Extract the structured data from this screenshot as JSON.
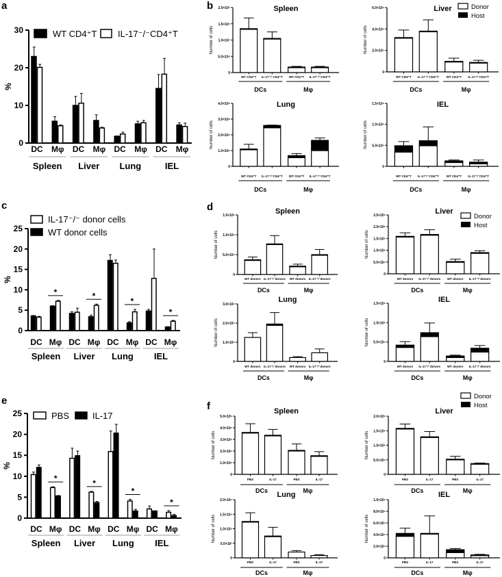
{
  "panel_letters": [
    "a",
    "b",
    "c",
    "d",
    "e",
    "f"
  ],
  "small_legends": {
    "b": [
      "Donor",
      "Host"
    ],
    "d": [
      "Donor",
      "Host"
    ],
    "f": [
      "Donor",
      "Host"
    ]
  },
  "chart_data": [
    {
      "id": "a",
      "type": "bar",
      "ylabel": "%",
      "ylim": [
        0,
        30
      ],
      "yticks": [
        0,
        10,
        20,
        30
      ],
      "organs": [
        "Spleen",
        "Liver",
        "Lung",
        "IEL"
      ],
      "cell_types": [
        "DC",
        "Mφ"
      ],
      "series": [
        {
          "name": "WT CD4⁺T",
          "color": "#000000",
          "values": [
            23.0,
            5.8,
            10.0,
            6.0,
            1.8,
            5.1,
            14.5,
            4.8
          ],
          "errors": [
            2.5,
            1.2,
            2.4,
            1.5,
            0.1,
            0.7,
            3.7,
            0.6
          ]
        },
        {
          "name": "IL-17⁻/⁻CD4⁺T",
          "color": "#ffffff",
          "values": [
            20.1,
            4.6,
            10.6,
            4.0,
            2.4,
            5.4,
            18.3,
            4.4
          ],
          "errors": [
            0.8,
            0.2,
            2.6,
            0.2,
            0.5,
            0.6,
            4.2,
            0.9
          ]
        }
      ],
      "significant_groups": [],
      "significance_label": "*",
      "legend": "top"
    },
    {
      "id": "b-spleen",
      "panel": "b",
      "type": "bar",
      "stacked": true,
      "title": "Spleen",
      "ylabel": "Number of cells",
      "ylim": [
        0,
        20000000.0
      ],
      "yticks": [
        0,
        5000000.0,
        10000000.0,
        15000000.0,
        20000000.0
      ],
      "ytick_labels": [
        "0",
        "5.0×10⁶",
        "1.0×10⁷",
        "1.5×10⁷",
        "2.0×10⁷"
      ],
      "categories": [
        "WT CD4⁺T",
        "IL-17⁻/⁻CD4⁺T",
        "WT CD4⁺T",
        "IL-17⁻/⁻CD4⁺T"
      ],
      "groups": [
        "DCs",
        "Mφ"
      ],
      "series": [
        {
          "name": "Donor",
          "values": [
            13400000.0,
            10400000.0,
            1600000.0,
            1600000.0
          ]
        },
        {
          "name": "Host",
          "values": [
            100000.0,
            100000.0,
            100000.0,
            100000.0
          ]
        }
      ],
      "errors": [
        3300000.0,
        2000000.0,
        200000.0,
        200000.0
      ]
    },
    {
      "id": "b-liver",
      "panel": "b",
      "type": "bar",
      "stacked": true,
      "title": "Liver",
      "ylabel": "Number of cells",
      "ylim": [
        0,
        6000000.0
      ],
      "yticks": [
        0,
        2000000.0,
        4000000.0,
        6000000.0
      ],
      "ytick_labels": [
        "0",
        "2.0×10⁶",
        "4.0×10⁶",
        "6.0×10⁶"
      ],
      "categories": [
        "WT CD4⁺T",
        "IL-17⁻/⁻CD4⁺T",
        "WT CD4⁺T",
        "IL-17⁻/⁻CD4⁺T"
      ],
      "groups": [
        "DCs",
        "Mφ"
      ],
      "series": [
        {
          "name": "Donor",
          "values": [
            3150000.0,
            3750000.0,
            950000.0,
            830000.0
          ]
        },
        {
          "name": "Host",
          "values": [
            50000.0,
            50000.0,
            30000.0,
            50000.0
          ]
        }
      ],
      "errors": [
        700000.0,
        1050000.0,
        300000.0,
        200000.0
      ]
    },
    {
      "id": "b-lung",
      "panel": "b",
      "type": "bar",
      "stacked": true,
      "title": "Lung",
      "ylabel": "Number of cells",
      "ylim": [
        0,
        4000000.0
      ],
      "yticks": [
        0,
        1000000.0,
        2000000.0,
        3000000.0,
        4000000.0
      ],
      "ytick_labels": [
        "0",
        "1.0×10⁶",
        "2.0×10⁶",
        "3.0×10⁶",
        "4.0×10⁶"
      ],
      "categories": [
        "WT CD4⁺T",
        "IL-17⁻/⁻CD4⁺T",
        "WT CD4⁺T",
        "IL-17⁻/⁻CD4⁺T"
      ],
      "groups": [
        "DCs",
        "Mφ"
      ],
      "series": [
        {
          "name": "Donor",
          "values": [
            1050000.0,
            2450000.0,
            550000.0,
            1000000.0
          ]
        },
        {
          "name": "Host",
          "values": [
            50000.0,
            150000.0,
            130000.0,
            650000.0
          ]
        }
      ],
      "errors": [
        300000.0,
        20000.0,
        130000.0,
        150000.0
      ]
    },
    {
      "id": "b-iel",
      "panel": "b",
      "type": "bar",
      "stacked": true,
      "title": "IEL",
      "ylabel": "Number of cells",
      "ylim": [
        0,
        1500000.0
      ],
      "yticks": [
        0,
        500000.0,
        1000000.0,
        1500000.0
      ],
      "ytick_labels": [
        "0",
        "5.0×10⁵",
        "1.0×10⁶",
        "1.5×10⁶"
      ],
      "categories": [
        "WT CD4⁺T",
        "IL-17⁻/⁻CD4⁺T",
        "WT CD4⁺T",
        "IL-17⁻/⁻CD4⁺T"
      ],
      "groups": [
        "DCs",
        "Mφ"
      ],
      "series": [
        {
          "name": "Donor",
          "values": [
            340000.0,
            490000.0,
            90000.0,
            60000.0
          ]
        },
        {
          "name": "Host",
          "values": [
            150000.0,
            120000.0,
            40000.0,
            40000.0
          ]
        }
      ],
      "errors": [
        100000.0,
        330000.0,
        20000.0,
        50000.0
      ]
    },
    {
      "id": "c",
      "type": "bar",
      "ylabel": "%",
      "ylim": [
        0,
        25
      ],
      "yticks": [
        0,
        5,
        10,
        15,
        20,
        25
      ],
      "organs": [
        "Spleen",
        "Liver",
        "Lung",
        "IEL"
      ],
      "cell_types": [
        "DC",
        "Mφ"
      ],
      "series": [
        {
          "name": "WT donor cells",
          "color": "#000000",
          "values": [
            3.6,
            6.0,
            4.2,
            3.4,
            17.2,
            1.9,
            4.8,
            0.9
          ],
          "errors": [
            0.1,
            0.1,
            0.4,
            0.4,
            1.4,
            0.3,
            0.4,
            0.05
          ]
        },
        {
          "name": "IL-17⁻/⁻ donor cells",
          "color": "#ffffff",
          "values": [
            3.3,
            7.2,
            4.5,
            6.2,
            16.5,
            4.6,
            12.8,
            2.3
          ],
          "errors": [
            0.2,
            0.2,
            1.0,
            0.3,
            0.8,
            0.6,
            7.2,
            0.2
          ]
        }
      ],
      "legend_order": [
        1,
        0
      ],
      "significant_groups": [
        1,
        3,
        5,
        7
      ],
      "significance_label": "*",
      "legend": "top-left"
    },
    {
      "id": "d-spleen",
      "panel": "d",
      "type": "bar",
      "stacked": true,
      "title": "Spleen",
      "ylabel": "Number of cells",
      "ylim": [
        0,
        150000.0
      ],
      "yticks": [
        0,
        50000.0,
        100000.0,
        150000.0
      ],
      "ytick_labels": [
        "0",
        "5.0×10⁴",
        "1.0×10⁵",
        "1.5×10⁵"
      ],
      "categories": [
        "WT donors",
        "IL-17⁻/⁻donors",
        "WT donors",
        "IL-17⁻/⁻donors"
      ],
      "groups": [
        "DCs",
        "Mφ"
      ],
      "series": [
        {
          "name": "Donor",
          "values": [
            36000.0,
            76000.0,
            20000.0,
            49000.0
          ]
        },
        {
          "name": "Host",
          "values": [
            1000.0,
            1000.0,
            1000.0,
            1000.0
          ]
        }
      ],
      "errors": [
        7000.0,
        21000.0,
        5000.0,
        13000.0
      ]
    },
    {
      "id": "d-liver",
      "panel": "d",
      "type": "bar",
      "stacked": true,
      "title": "Liver",
      "ylabel": "Number of cells",
      "ylim": [
        0,
        250000.0
      ],
      "yticks": [
        0,
        50000.0,
        100000.0,
        150000.0,
        200000.0,
        250000.0
      ],
      "ytick_labels": [
        "0",
        "5.0×10⁴",
        "1.0×10⁵",
        "1.5×10⁵",
        "2.0×10⁵",
        "2.5×10⁵"
      ],
      "categories": [
        "WT donors",
        "IL-17⁻/⁻donors",
        "WT donors",
        "IL-17⁻/⁻donors"
      ],
      "groups": [
        "DCs",
        "Mφ"
      ],
      "series": [
        {
          "name": "Donor",
          "values": [
            156000.0,
            164000.0,
            49000.0,
            87000.0
          ]
        },
        {
          "name": "Host",
          "values": [
            3000.0,
            3000.0,
            3000.0,
            3000.0
          ]
        }
      ],
      "errors": [
        15000.0,
        20000.0,
        10000.0,
        8000.0
      ]
    },
    {
      "id": "d-lung",
      "panel": "d",
      "type": "bar",
      "stacked": true,
      "title": "Lung",
      "ylabel": "Number of cells",
      "ylim": [
        0,
        30000.0
      ],
      "yticks": [
        0,
        10000.0,
        20000.0,
        30000.0
      ],
      "ytick_labels": [
        "0",
        "1.0×10⁴",
        "2.0×10⁴",
        "3.0×10⁴"
      ],
      "categories": [
        "WT donors",
        "IL-17⁻/⁻donors",
        "WT donors",
        "IL-17⁻/⁻donors"
      ],
      "groups": [
        "DCs",
        "Mφ"
      ],
      "series": [
        {
          "name": "Donor",
          "values": [
            12500.0,
            18800.0,
            2000.0,
            4500.0
          ]
        },
        {
          "name": "Host",
          "values": [
            0,
            700.0,
            0,
            0
          ]
        }
      ],
      "errors": [
        2500.0,
        6000.0,
        500.0,
        2000.0
      ]
    },
    {
      "id": "d-iel",
      "panel": "d",
      "type": "bar",
      "stacked": true,
      "title": "IEL",
      "ylabel": "Number of cells",
      "ylim": [
        0,
        150000.0
      ],
      "yticks": [
        0,
        50000.0,
        100000.0,
        150000.0
      ],
      "ytick_labels": [
        "0",
        "5.0×10⁴",
        "1.0×10⁵",
        "1.5×10⁵"
      ],
      "categories": [
        "WT donors",
        "IL-17⁻/⁻donors",
        "WT donors",
        "IL-17⁻/⁻donors"
      ],
      "groups": [
        "DCs",
        "Mφ"
      ],
      "series": [
        {
          "name": "Donor",
          "values": [
            36000.0,
            64000.0,
            10000.0,
            24000.0
          ]
        },
        {
          "name": "Host",
          "values": [
            6000.0,
            10000.0,
            4000.0,
            10000.0
          ]
        }
      ],
      "errors": [
        9000.0,
        25000.0,
        2000.0,
        7000.0
      ]
    },
    {
      "id": "e",
      "type": "bar",
      "ylabel": "%",
      "ylim": [
        0,
        25
      ],
      "yticks": [
        0,
        5,
        10,
        15,
        20,
        25
      ],
      "organs": [
        "Spleen",
        "Liver",
        "Lung",
        "IEL"
      ],
      "cell_types": [
        "DC",
        "Mφ"
      ],
      "series": [
        {
          "name": "PBS",
          "color": "#ffffff",
          "values": [
            10.4,
            7.3,
            14.3,
            6.2,
            15.9,
            4.1,
            2.2,
            1.4
          ],
          "errors": [
            0.6,
            0.2,
            2.4,
            0.2,
            4.9,
            0.4,
            0.7,
            0.4
          ]
        },
        {
          "name": "IL-17",
          "color": "#000000",
          "values": [
            12.1,
            5.3,
            14.9,
            3.7,
            20.3,
            1.7,
            1.7,
            0.6
          ],
          "errors": [
            0.6,
            0.1,
            1.1,
            0.3,
            2.1,
            0.4,
            0.05,
            0.3
          ]
        }
      ],
      "significant_groups": [
        1,
        3,
        5,
        7
      ],
      "significance_label": "*",
      "legend": "top"
    },
    {
      "id": "f-spleen",
      "panel": "f",
      "type": "bar",
      "stacked": true,
      "title": "Spleen",
      "ylabel": "Number of cells",
      "ylim": [
        0,
        500000.0
      ],
      "yticks": [
        0,
        100000.0,
        200000.0,
        300000.0,
        400000.0,
        500000.0
      ],
      "ytick_labels": [
        "0",
        "1.0×10⁵",
        "2.0×10⁵",
        "3.0×10⁵",
        "4.0×10⁵",
        "5.0×10⁵"
      ],
      "categories": [
        "PBS",
        "IL-17",
        "PBS",
        "IL-17"
      ],
      "groups": [
        "DCs",
        "Mφ"
      ],
      "series": [
        {
          "name": "Donor",
          "values": [
            358000.0,
            334000.0,
            204000.0,
            158000.0
          ]
        },
        {
          "name": "Host",
          "values": [
            2000.0,
            2000.0,
            2000.0,
            2000.0
          ]
        }
      ],
      "errors": [
        75000.0,
        50000.0,
        55000.0,
        35000.0
      ]
    },
    {
      "id": "f-liver",
      "panel": "f",
      "type": "bar",
      "stacked": true,
      "title": "Liver",
      "ylabel": "Number of cells",
      "ylim": [
        0,
        200000.0
      ],
      "yticks": [
        0,
        50000.0,
        100000.0,
        150000.0,
        200000.0
      ],
      "ytick_labels": [
        "0",
        "5.0×10⁴",
        "1.0×10⁵",
        "1.5×10⁵",
        "2.0×10⁵"
      ],
      "categories": [
        "PBS",
        "IL-17",
        "PBS",
        "IL-17"
      ],
      "groups": [
        "DCs",
        "Mφ"
      ],
      "series": [
        {
          "name": "Donor",
          "values": [
            156000.0,
            127000.0,
            50000.0,
            36000.0
          ]
        },
        {
          "name": "Host",
          "values": [
            2000.0,
            2000.0,
            2000.0,
            1000.0
          ]
        }
      ],
      "errors": [
        15000.0,
        18000.0,
        10000.0,
        2000.0
      ]
    },
    {
      "id": "f-lung",
      "panel": "f",
      "type": "bar",
      "stacked": true,
      "title": "Lung",
      "ylabel": "Number of cells",
      "ylim": [
        0,
        20000.0
      ],
      "yticks": [
        0,
        5000.0,
        10000.0,
        15000.0,
        20000.0
      ],
      "ytick_labels": [
        "0",
        "5.0×10³",
        "1.0×10⁴",
        "1.5×10⁴",
        "2.0×10⁴"
      ],
      "categories": [
        "PBS",
        "IL-17",
        "PBS",
        "IL-17"
      ],
      "groups": [
        "DCs",
        "Mφ"
      ],
      "series": [
        {
          "name": "Donor",
          "values": [
            12400.0,
            7400.0,
            2000.0,
            800.0
          ]
        },
        {
          "name": "Host",
          "values": [
            100.0,
            100.0,
            0,
            0
          ]
        }
      ],
      "errors": [
        3000.0,
        3000.0,
        500.0,
        300.0
      ]
    },
    {
      "id": "f-iel",
      "panel": "f",
      "type": "bar",
      "stacked": true,
      "title": "IEL",
      "ylabel": "Number of cells",
      "ylim": [
        0,
        100000.0
      ],
      "yticks": [
        0,
        20000.0,
        40000.0,
        60000.0,
        80000.0,
        100000.0
      ],
      "ytick_labels": [
        "0",
        "2.0×10⁴",
        "4.0×10⁴",
        "6.0×10⁴",
        "8.0×10⁴",
        "1.0×10⁵"
      ],
      "categories": [
        "PBS",
        "IL-17",
        "PBS",
        "IL-17"
      ],
      "groups": [
        "DCs",
        "Mφ"
      ],
      "series": [
        {
          "name": "Donor",
          "values": [
            37000.0,
            41000.0,
            9000.0,
            4000.0
          ]
        },
        {
          "name": "Host",
          "values": [
            5000.0,
            1000.0,
            5000.0,
            1000.0
          ]
        }
      ],
      "errors": [
        9000.0,
        30000.0,
        2000.0,
        1000.0
      ]
    }
  ]
}
